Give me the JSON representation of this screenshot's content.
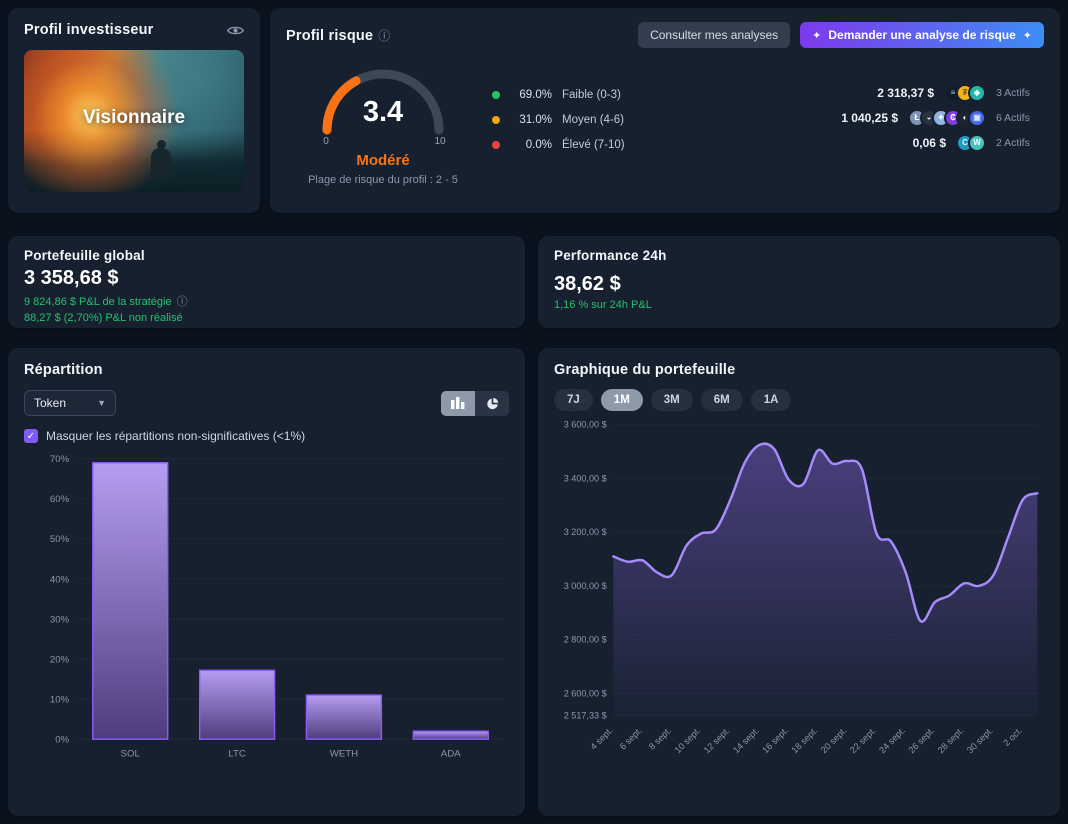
{
  "investor_profile": {
    "title": "Profil investisseur",
    "badge": "Visionnaire"
  },
  "risk_profile": {
    "title": "Profil risque",
    "info_icon": "ⓘ",
    "buttons": {
      "secondary": "Consulter mes analyses",
      "primary": "Demander une analyse de risque"
    },
    "gauge": {
      "value": "3.4",
      "min_label": "0",
      "max_label": "10",
      "status": "Modéré",
      "range_note": "Plage de risque du profil : 2 - 5",
      "fraction": 0.34,
      "arc_color": "#f97316",
      "track_color": "#3d4855"
    },
    "legend": [
      {
        "pct": "69.0%",
        "label": "Faible (0-3)",
        "color": "#22c55e"
      },
      {
        "pct": "31.0%",
        "label": "Moyen (4-6)",
        "color": "#f0a90b"
      },
      {
        "pct": "0.0%",
        "label": "Élevé (7-10)",
        "color": "#ef4444"
      }
    ],
    "assets": [
      {
        "value": "2 318,37 $",
        "count": "3 Actifs",
        "coins": [
          {
            "bg": "#131a2c",
            "fg": "#7ee0d2",
            "glyph": "≡"
          },
          {
            "bg": "#f2b21c",
            "fg": "#7a5200",
            "glyph": "₮"
          },
          {
            "bg": "#27b4a4",
            "fg": "#eafffb",
            "glyph": "◈"
          }
        ]
      },
      {
        "value": "1 040,25 $",
        "count": "6 Actifs",
        "coins": [
          {
            "bg": "#7f93b5",
            "fg": "#ffffff",
            "glyph": "Ł"
          },
          {
            "bg": "#27313f",
            "fg": "#e2e8f0",
            "glyph": "◒"
          },
          {
            "bg": "#8fb4dd",
            "fg": "#ffffff",
            "glyph": "✦"
          },
          {
            "bg": "#7d3fe0",
            "fg": "#ffffff",
            "glyph": "₵"
          },
          {
            "bg": "#1c2430",
            "fg": "#ffffff",
            "glyph": "◐"
          },
          {
            "bg": "#4569e8",
            "fg": "#d6e2ff",
            "glyph": "▣"
          }
        ]
      },
      {
        "value": "0,06 $",
        "count": "2 Actifs",
        "coins": [
          {
            "bg": "#1f9bbf",
            "fg": "#dff6ff",
            "glyph": "C"
          },
          {
            "bg": "#49c0b8",
            "fg": "#f0fffd",
            "glyph": "W"
          }
        ]
      }
    ]
  },
  "portfolio_global": {
    "title": "Portefeuille global",
    "value": "3 358,68 $",
    "pnl_strategy": "9 824,86 $ P&L de la stratégie",
    "pnl_unrealized": "88,27 $ (2,70%) P&L non réalisé"
  },
  "performance": {
    "title": "Performance 24h",
    "value": "38,62 $",
    "subtitle": "1,16 % sur 24h P&L"
  },
  "allocation": {
    "title": "Répartition",
    "dropdown_value": "Token",
    "hide_label": "Masquer les répartitions non-significatives (<1%)"
  },
  "portfolio_chart": {
    "title": "Graphique du portefeuille",
    "periods": [
      "7J",
      "1M",
      "3M",
      "6M",
      "1A"
    ],
    "active_period": "1M"
  },
  "chart_data": [
    {
      "type": "bar",
      "title": "Répartition par token",
      "categories": [
        "SOL",
        "LTC",
        "WETH",
        "ADA"
      ],
      "values": [
        69,
        17.2,
        11,
        2
      ],
      "ylabel": "%",
      "ylim": [
        0,
        70
      ],
      "yticks": [
        0,
        10,
        20,
        30,
        40,
        50,
        60,
        70
      ],
      "bar_stroke": "#8b5cf6",
      "bar_fill_top": "#b79df2",
      "bar_fill_bottom": "#4e3d7d"
    },
    {
      "type": "area",
      "title": "Graphique du portefeuille (1M)",
      "x_ticklabels": [
        "4 sept.",
        "6 sept.",
        "8 sept.",
        "10 sept.",
        "12 sept.",
        "14 sept.",
        "16 sept.",
        "18 sept.",
        "20 sept.",
        "22 sept.",
        "24 sept.",
        "26 sept.",
        "28 sept.",
        "30 sept.",
        "2 oct."
      ],
      "values": [
        3110,
        3090,
        3095,
        3050,
        3040,
        3150,
        3195,
        3210,
        3320,
        3460,
        3525,
        3510,
        3395,
        3380,
        3505,
        3455,
        3465,
        3435,
        3195,
        3165,
        3050,
        2870,
        2940,
        2965,
        3010,
        3000,
        3040,
        3180,
        3320,
        3345
      ],
      "ylim": [
        2517.33,
        3600
      ],
      "y_ticks": [
        {
          "label": "3 600,00 $",
          "value": 3600
        },
        {
          "label": "3 400,00 $",
          "value": 3400
        },
        {
          "label": "3 200,00 $",
          "value": 3200
        },
        {
          "label": "3 000,00 $",
          "value": 3000
        },
        {
          "label": "2 800,00 $",
          "value": 2800
        },
        {
          "label": "2 600,00 $",
          "value": 2600
        },
        {
          "label": "2 517,33 $",
          "value": 2517.33
        }
      ],
      "line_color": "#a78bfa",
      "area_color": "#7a5cc8",
      "grid": true,
      "legend_position": "none"
    }
  ]
}
